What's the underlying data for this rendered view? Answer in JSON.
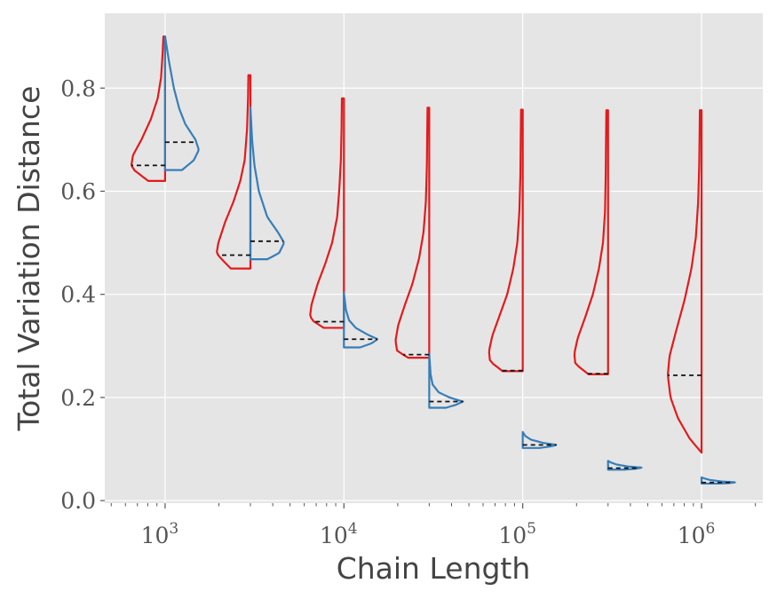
{
  "chart_data": {
    "type": "violin",
    "title": "",
    "xlabel": "Chain Length",
    "ylabel": "Total Variation Distance",
    "x_scale": "log",
    "xlim": [
      460,
      2200000
    ],
    "ylim": [
      -0.005,
      0.945
    ],
    "x_ticks": [
      {
        "value": 1000,
        "base": "10",
        "exp": "3"
      },
      {
        "value": 10000,
        "base": "10",
        "exp": "4"
      },
      {
        "value": 100000,
        "base": "10",
        "exp": "5"
      },
      {
        "value": 1000000,
        "base": "10",
        "exp": "6"
      }
    ],
    "y_ticks": [
      {
        "value": 0.0,
        "label": "0.0"
      },
      {
        "value": 0.2,
        "label": "0.2"
      },
      {
        "value": 0.4,
        "label": "0.4"
      },
      {
        "value": 0.6,
        "label": "0.6"
      },
      {
        "value": 0.8,
        "label": "0.8"
      }
    ],
    "grid": true,
    "background": "#e5e5e5",
    "series": [
      {
        "color": "#e41a1c",
        "side": "left",
        "violins": [
          {
            "x": 1000,
            "min": 0.62,
            "max": 0.9,
            "median": 0.65,
            "profile": [
              [
                0.62,
                0.5
              ],
              [
                0.64,
                0.9
              ],
              [
                0.65,
                1.0
              ],
              [
                0.67,
                0.95
              ],
              [
                0.7,
                0.7
              ],
              [
                0.74,
                0.42
              ],
              [
                0.78,
                0.22
              ],
              [
                0.82,
                0.12
              ],
              [
                0.86,
                0.08
              ],
              [
                0.9,
                0.05
              ]
            ]
          },
          {
            "x": 3000,
            "min": 0.45,
            "max": 0.825,
            "median": 0.476,
            "profile": [
              [
                0.45,
                0.58
              ],
              [
                0.47,
                0.88
              ],
              [
                0.48,
                1.0
              ],
              [
                0.5,
                0.95
              ],
              [
                0.54,
                0.75
              ],
              [
                0.58,
                0.5
              ],
              [
                0.62,
                0.3
              ],
              [
                0.66,
                0.17
              ],
              [
                0.72,
                0.1
              ],
              [
                0.78,
                0.07
              ],
              [
                0.825,
                0.06
              ]
            ]
          },
          {
            "x": 10000,
            "min": 0.335,
            "max": 0.78,
            "median": 0.347,
            "profile": [
              [
                0.335,
                0.6
              ],
              [
                0.35,
                0.95
              ],
              [
                0.36,
                1.0
              ],
              [
                0.38,
                0.96
              ],
              [
                0.42,
                0.78
              ],
              [
                0.46,
                0.55
              ],
              [
                0.5,
                0.35
              ],
              [
                0.55,
                0.2
              ],
              [
                0.6,
                0.14
              ],
              [
                0.66,
                0.09
              ],
              [
                0.72,
                0.07
              ],
              [
                0.78,
                0.06
              ]
            ]
          },
          {
            "x": 30000,
            "min": 0.277,
            "max": 0.762,
            "median": 0.283,
            "profile": [
              [
                0.277,
                0.62
              ],
              [
                0.29,
                0.95
              ],
              [
                0.31,
                1.0
              ],
              [
                0.34,
                0.92
              ],
              [
                0.38,
                0.72
              ],
              [
                0.42,
                0.5
              ],
              [
                0.47,
                0.3
              ],
              [
                0.52,
                0.17
              ],
              [
                0.58,
                0.1
              ],
              [
                0.65,
                0.07
              ],
              [
                0.71,
                0.06
              ],
              [
                0.762,
                0.05
              ]
            ]
          },
          {
            "x": 100000,
            "min": 0.251,
            "max": 0.758,
            "median": 0.252,
            "profile": [
              [
                0.251,
                0.6
              ],
              [
                0.27,
                0.97
              ],
              [
                0.29,
                1.0
              ],
              [
                0.32,
                0.9
              ],
              [
                0.36,
                0.68
              ],
              [
                0.4,
                0.46
              ],
              [
                0.45,
                0.28
              ],
              [
                0.5,
                0.16
              ],
              [
                0.56,
                0.1
              ],
              [
                0.63,
                0.07
              ],
              [
                0.7,
                0.06
              ],
              [
                0.758,
                0.05
              ]
            ]
          },
          {
            "x": 300000,
            "min": 0.245,
            "max": 0.757,
            "median": 0.246,
            "profile": [
              [
                0.245,
                0.58
              ],
              [
                0.265,
                0.97
              ],
              [
                0.285,
                1.0
              ],
              [
                0.315,
                0.9
              ],
              [
                0.355,
                0.68
              ],
              [
                0.4,
                0.45
              ],
              [
                0.45,
                0.27
              ],
              [
                0.5,
                0.15
              ],
              [
                0.56,
                0.09
              ],
              [
                0.63,
                0.07
              ],
              [
                0.7,
                0.06
              ],
              [
                0.757,
                0.05
              ]
            ]
          },
          {
            "x": 1000000,
            "min": 0.093,
            "max": 0.757,
            "median": 0.243,
            "profile": [
              [
                0.093,
                0.0
              ],
              [
                0.12,
                0.35
              ],
              [
                0.16,
                0.7
              ],
              [
                0.2,
                0.92
              ],
              [
                0.243,
                1.0
              ],
              [
                0.28,
                0.95
              ],
              [
                0.33,
                0.75
              ],
              [
                0.39,
                0.5
              ],
              [
                0.45,
                0.3
              ],
              [
                0.51,
                0.17
              ],
              [
                0.58,
                0.1
              ],
              [
                0.65,
                0.07
              ],
              [
                0.7,
                0.06
              ],
              [
                0.757,
                0.05
              ]
            ]
          }
        ]
      },
      {
        "color": "#377eb8",
        "side": "right",
        "violins": [
          {
            "x": 1000,
            "min": 0.641,
            "max": 0.9,
            "median": 0.695,
            "profile": [
              [
                0.641,
                0.5
              ],
              [
                0.66,
                0.85
              ],
              [
                0.68,
                1.0
              ],
              [
                0.7,
                0.9
              ],
              [
                0.73,
                0.6
              ],
              [
                0.76,
                0.42
              ],
              [
                0.8,
                0.26
              ],
              [
                0.85,
                0.12
              ],
              [
                0.9,
                0.0
              ]
            ]
          },
          {
            "x": 3000,
            "min": 0.468,
            "max": 0.762,
            "median": 0.503,
            "profile": [
              [
                0.468,
                0.5
              ],
              [
                0.48,
                0.85
              ],
              [
                0.5,
                1.0
              ],
              [
                0.52,
                0.82
              ],
              [
                0.55,
                0.5
              ],
              [
                0.6,
                0.25
              ],
              [
                0.65,
                0.12
              ],
              [
                0.7,
                0.05
              ],
              [
                0.762,
                0.0
              ]
            ]
          },
          {
            "x": 10000,
            "min": 0.297,
            "max": 0.403,
            "median": 0.313,
            "profile": [
              [
                0.297,
                0.48
              ],
              [
                0.305,
                0.82
              ],
              [
                0.313,
                1.0
              ],
              [
                0.322,
                0.7
              ],
              [
                0.335,
                0.35
              ],
              [
                0.35,
                0.15
              ],
              [
                0.37,
                0.06
              ],
              [
                0.403,
                0.0
              ]
            ]
          },
          {
            "x": 30000,
            "min": 0.18,
            "max": 0.285,
            "median": 0.192,
            "profile": [
              [
                0.18,
                0.5
              ],
              [
                0.186,
                0.8
              ],
              [
                0.192,
                1.0
              ],
              [
                0.2,
                0.6
              ],
              [
                0.21,
                0.28
              ],
              [
                0.225,
                0.1
              ],
              [
                0.245,
                0.04
              ],
              [
                0.285,
                0.0
              ]
            ]
          },
          {
            "x": 100000,
            "min": 0.102,
            "max": 0.133,
            "median": 0.108,
            "profile": [
              [
                0.102,
                0.5
              ],
              [
                0.105,
                0.82
              ],
              [
                0.108,
                1.0
              ],
              [
                0.112,
                0.6
              ],
              [
                0.118,
                0.25
              ],
              [
                0.125,
                0.08
              ],
              [
                0.133,
                0.0
              ]
            ]
          },
          {
            "x": 300000,
            "min": 0.06,
            "max": 0.077,
            "median": 0.063,
            "profile": [
              [
                0.06,
                0.5
              ],
              [
                0.062,
                0.85
              ],
              [
                0.064,
                1.0
              ],
              [
                0.066,
                0.6
              ],
              [
                0.07,
                0.25
              ],
              [
                0.074,
                0.08
              ],
              [
                0.077,
                0.0
              ]
            ]
          },
          {
            "x": 1000000,
            "min": 0.033,
            "max": 0.045,
            "median": 0.035,
            "profile": [
              [
                0.033,
                0.5
              ],
              [
                0.034,
                0.85
              ],
              [
                0.0355,
                1.0
              ],
              [
                0.037,
                0.6
              ],
              [
                0.04,
                0.25
              ],
              [
                0.043,
                0.08
              ],
              [
                0.045,
                0.0
              ]
            ]
          }
        ]
      }
    ]
  }
}
